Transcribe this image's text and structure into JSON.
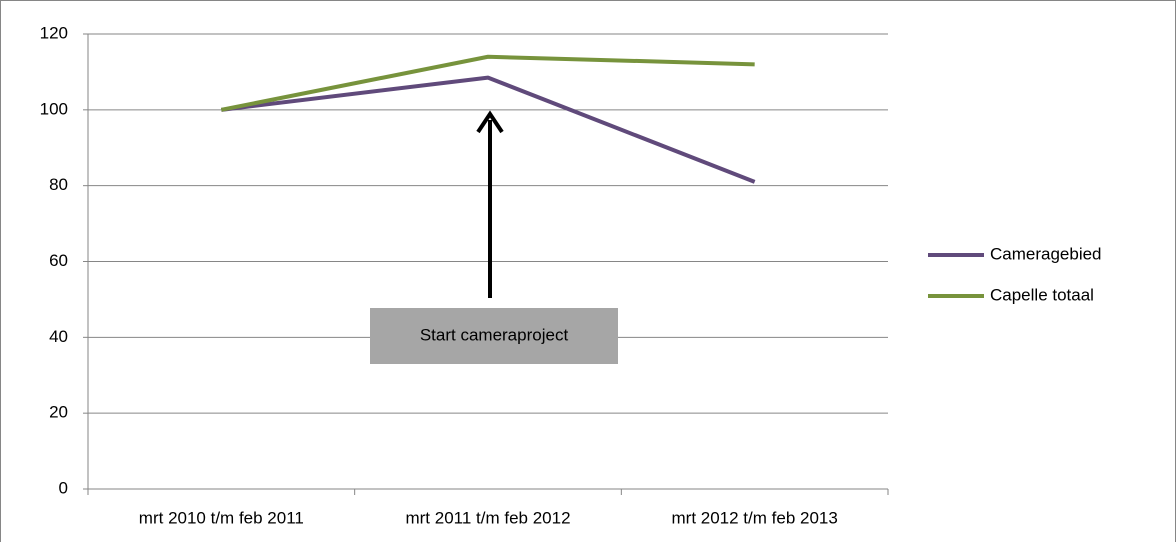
{
  "chart_data": {
    "type": "line",
    "categories": [
      "mrt 2010 t/m feb 2011",
      "mrt 2011 t/m feb 2012",
      "mrt 2012 t/m feb 2013"
    ],
    "series": [
      {
        "name": "Cameragebied",
        "color": "#604a7b",
        "values": [
          100,
          108.5,
          81
        ]
      },
      {
        "name": "Capelle totaal",
        "color": "#77933c",
        "values": [
          100,
          114,
          112
        ]
      }
    ],
    "ylim": [
      0,
      120
    ],
    "yticks": [
      0,
      20,
      40,
      60,
      80,
      100,
      120
    ],
    "grid": true,
    "legend": "right",
    "annotation": "Start cameraproject"
  }
}
